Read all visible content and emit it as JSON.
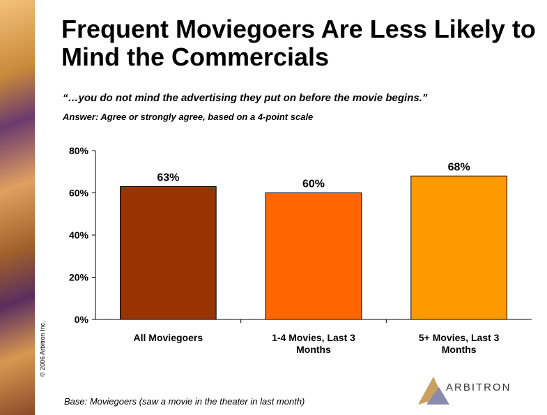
{
  "chart_data": {
    "type": "bar",
    "title": "Frequent Moviegoers Are Less Likely to Mind the Commercials",
    "subtitle": "“…you do not mind the advertising they put on before the movie begins.”",
    "note": "Answer:  Agree or strongly agree, based on a 4-point scale",
    "base": "Base:  Moviegoers (saw a movie in the theater in last month)",
    "copyright": "© 2006 Arbitron Inc.",
    "logo": "ARBITRON",
    "categories": [
      "All Moviegoers",
      "1-4 Movies, Last 3 Months",
      "5+ Movies, Last 3 Months"
    ],
    "values": [
      63,
      60,
      68
    ],
    "value_labels": [
      "63%",
      "60%",
      "68%"
    ],
    "colors": [
      "#993300",
      "#ff6600",
      "#ff9900"
    ],
    "ylim": [
      0,
      80
    ],
    "yticks": [
      {
        "value": 0,
        "label": "0%"
      },
      {
        "value": 20,
        "label": "20%"
      },
      {
        "value": 40,
        "label": "40%"
      },
      {
        "value": 60,
        "label": "60%"
      },
      {
        "value": 80,
        "label": "80%"
      }
    ]
  }
}
